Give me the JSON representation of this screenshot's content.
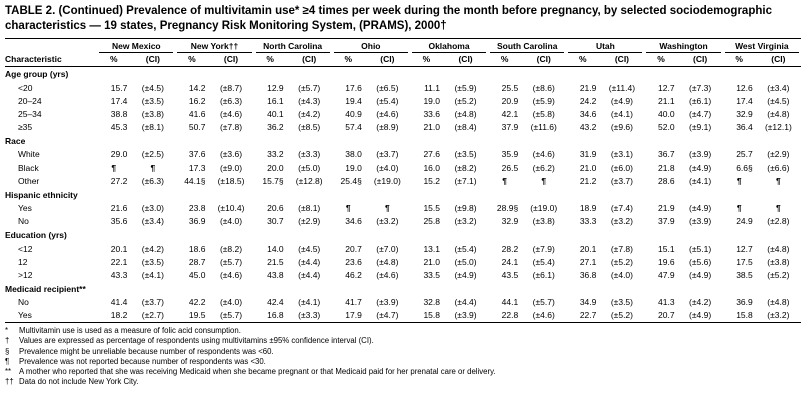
{
  "table": {
    "title": "TABLE 2. (Continued) Prevalence of multivitamin use* ≥4 times per week during the month before pregnancy, by selected sociodemographic characteristics — 19 states, Pregnancy Risk Monitoring System, (PRAMS), 2000†",
    "char_header": "Characteristic",
    "subheaders": [
      "%",
      "(CI)"
    ],
    "states": [
      "New Mexico",
      "New York††",
      "North Carolina",
      "Ohio",
      "Oklahoma",
      "South Carolina",
      "Utah",
      "Washington",
      "West Virginia"
    ],
    "sections": [
      {
        "label": "Age group (yrs)",
        "rows": [
          {
            "label": "<20",
            "values": [
              [
                "15.7",
                "(±4.5)"
              ],
              [
                "14.2",
                "(±8.7)"
              ],
              [
                "12.9",
                "(±5.7)"
              ],
              [
                "17.6",
                "(±6.5)"
              ],
              [
                "11.1",
                "(±5.9)"
              ],
              [
                "25.5",
                "(±8.6)"
              ],
              [
                "21.9",
                "(±11.4)"
              ],
              [
                "12.7",
                "(±7.3)"
              ],
              [
                "12.6",
                "(±3.4)"
              ]
            ]
          },
          {
            "label": "20–24",
            "values": [
              [
                "17.4",
                "(±3.5)"
              ],
              [
                "16.2",
                "(±6.3)"
              ],
              [
                "16.1",
                "(±4.3)"
              ],
              [
                "19.4",
                "(±5.4)"
              ],
              [
                "19.0",
                "(±5.2)"
              ],
              [
                "20.9",
                "(±5.9)"
              ],
              [
                "24.2",
                "(±4.9)"
              ],
              [
                "21.1",
                "(±6.1)"
              ],
              [
                "17.4",
                "(±4.5)"
              ]
            ]
          },
          {
            "label": "25–34",
            "values": [
              [
                "38.8",
                "(±3.8)"
              ],
              [
                "41.6",
                "(±4.6)"
              ],
              [
                "40.1",
                "(±4.2)"
              ],
              [
                "40.9",
                "(±4.6)"
              ],
              [
                "33.6",
                "(±4.8)"
              ],
              [
                "42.1",
                "(±5.8)"
              ],
              [
                "34.6",
                "(±4.1)"
              ],
              [
                "40.0",
                "(±4.7)"
              ],
              [
                "32.9",
                "(±4.8)"
              ]
            ]
          },
          {
            "label": "≥35",
            "values": [
              [
                "45.3",
                "(±8.1)"
              ],
              [
                "50.7",
                "(±7.8)"
              ],
              [
                "36.2",
                "(±8.5)"
              ],
              [
                "57.4",
                "(±8.9)"
              ],
              [
                "21.0",
                "(±8.4)"
              ],
              [
                "37.9",
                "(±11.6)"
              ],
              [
                "43.2",
                "(±9.6)"
              ],
              [
                "52.0",
                "(±9.1)"
              ],
              [
                "36.4",
                "(±12.1)"
              ]
            ]
          }
        ]
      },
      {
        "label": "Race",
        "rows": [
          {
            "label": "White",
            "values": [
              [
                "29.0",
                "(±2.5)"
              ],
              [
                "37.6",
                "(±3.6)"
              ],
              [
                "33.2",
                "(±3.3)"
              ],
              [
                "38.0",
                "(±3.7)"
              ],
              [
                "27.6",
                "(±3.5)"
              ],
              [
                "35.9",
                "(±4.6)"
              ],
              [
                "31.9",
                "(±3.1)"
              ],
              [
                "36.7",
                "(±3.9)"
              ],
              [
                "25.7",
                "(±2.9)"
              ]
            ]
          },
          {
            "label": "Black",
            "values": [
              [
                "¶",
                "¶"
              ],
              [
                "17.3",
                "(±9.0)"
              ],
              [
                "20.0",
                "(±5.0)"
              ],
              [
                "19.0",
                "(±4.0)"
              ],
              [
                "16.0",
                "(±8.2)"
              ],
              [
                "26.5",
                "(±6.2)"
              ],
              [
                "21.0",
                "(±6.0)"
              ],
              [
                "21.8",
                "(±4.9)"
              ],
              [
                "6.6§",
                "(±6.6)"
              ]
            ]
          },
          {
            "label": "Other",
            "values": [
              [
                "27.2",
                "(±6.3)"
              ],
              [
                "44.1§",
                "(±18.5)"
              ],
              [
                "15.7§",
                "(±12.8)"
              ],
              [
                "25.4§",
                "(±19.0)"
              ],
              [
                "15.2",
                "(±7.1)"
              ],
              [
                "¶",
                "¶"
              ],
              [
                "21.2",
                "(±3.7)"
              ],
              [
                "28.6",
                "(±4.1)"
              ],
              [
                "¶",
                "¶"
              ]
            ]
          }
        ]
      },
      {
        "label": "Hispanic ethnicity",
        "rows": [
          {
            "label": "Yes",
            "values": [
              [
                "21.6",
                "(±3.0)"
              ],
              [
                "23.8",
                "(±10.4)"
              ],
              [
                "20.6",
                "(±8.1)"
              ],
              [
                "¶",
                "¶"
              ],
              [
                "15.5",
                "(±9.8)"
              ],
              [
                "28.9§",
                "(±19.0)"
              ],
              [
                "18.9",
                "(±7.4)"
              ],
              [
                "21.9",
                "(±4.9)"
              ],
              [
                "¶",
                "¶"
              ]
            ]
          },
          {
            "label": "No",
            "values": [
              [
                "35.6",
                "(±3.4)"
              ],
              [
                "36.9",
                "(±4.0)"
              ],
              [
                "30.7",
                "(±2.9)"
              ],
              [
                "34.6",
                "(±3.2)"
              ],
              [
                "25.8",
                "(±3.2)"
              ],
              [
                "32.9",
                "(±3.8)"
              ],
              [
                "33.3",
                "(±3.2)"
              ],
              [
                "37.9",
                "(±3.9)"
              ],
              [
                "24.9",
                "(±2.8)"
              ]
            ]
          }
        ]
      },
      {
        "label": "Education (yrs)",
        "rows": [
          {
            "label": "<12",
            "values": [
              [
                "20.1",
                "(±4.2)"
              ],
              [
                "18.6",
                "(±8.2)"
              ],
              [
                "14.0",
                "(±4.5)"
              ],
              [
                "20.7",
                "(±7.0)"
              ],
              [
                "13.1",
                "(±5.4)"
              ],
              [
                "28.2",
                "(±7.9)"
              ],
              [
                "20.1",
                "(±7.8)"
              ],
              [
                "15.1",
                "(±5.1)"
              ],
              [
                "12.7",
                "(±4.8)"
              ]
            ]
          },
          {
            "label": "12",
            "values": [
              [
                "22.1",
                "(±3.5)"
              ],
              [
                "28.7",
                "(±5.7)"
              ],
              [
                "21.5",
                "(±4.4)"
              ],
              [
                "23.6",
                "(±4.8)"
              ],
              [
                "21.0",
                "(±5.0)"
              ],
              [
                "24.1",
                "(±5.4)"
              ],
              [
                "27.1",
                "(±5.2)"
              ],
              [
                "19.6",
                "(±5.6)"
              ],
              [
                "17.5",
                "(±3.8)"
              ]
            ]
          },
          {
            "label": ">12",
            "values": [
              [
                "43.3",
                "(±4.1)"
              ],
              [
                "45.0",
                "(±4.6)"
              ],
              [
                "43.8",
                "(±4.4)"
              ],
              [
                "46.2",
                "(±4.6)"
              ],
              [
                "33.5",
                "(±4.9)"
              ],
              [
                "43.5",
                "(±6.1)"
              ],
              [
                "36.8",
                "(±4.0)"
              ],
              [
                "47.9",
                "(±4.9)"
              ],
              [
                "38.5",
                "(±5.2)"
              ]
            ]
          }
        ]
      },
      {
        "label": "Medicaid recipient**",
        "rows": [
          {
            "label": "No",
            "values": [
              [
                "41.4",
                "(±3.7)"
              ],
              [
                "42.2",
                "(±4.0)"
              ],
              [
                "42.4",
                "(±4.1)"
              ],
              [
                "41.7",
                "(±3.9)"
              ],
              [
                "32.8",
                "(±4.4)"
              ],
              [
                "44.1",
                "(±5.7)"
              ],
              [
                "34.9",
                "(±3.5)"
              ],
              [
                "41.3",
                "(±4.2)"
              ],
              [
                "36.9",
                "(±4.8)"
              ]
            ]
          },
          {
            "label": "Yes",
            "values": [
              [
                "18.2",
                "(±2.7)"
              ],
              [
                "19.5",
                "(±5.7)"
              ],
              [
                "16.8",
                "(±3.3)"
              ],
              [
                "17.9",
                "(±4.7)"
              ],
              [
                "15.8",
                "(±3.9)"
              ],
              [
                "22.8",
                "(±4.6)"
              ],
              [
                "22.7",
                "(±5.2)"
              ],
              [
                "20.7",
                "(±4.9)"
              ],
              [
                "15.8",
                "(±3.2)"
              ]
            ]
          }
        ]
      }
    ]
  },
  "footnotes": [
    {
      "marker": "*",
      "text": "Multivitamin use is used as a measure of folic acid consumption."
    },
    {
      "marker": "†",
      "text": "Values are expressed as percentage of respondents using multivitamins ±95% confidence interval (CI)."
    },
    {
      "marker": "§",
      "text": "Prevalence might be unreliable because number of respondents was <60."
    },
    {
      "marker": "¶",
      "text": "Prevalence was not reported because number of respondents was <30."
    },
    {
      "marker": "**",
      "text": "A mother who reported that she was receiving Medicaid when she became pregnant or that Medicaid paid for her prenatal care or delivery."
    },
    {
      "marker": "††",
      "text": "Data do not include New York City."
    }
  ]
}
